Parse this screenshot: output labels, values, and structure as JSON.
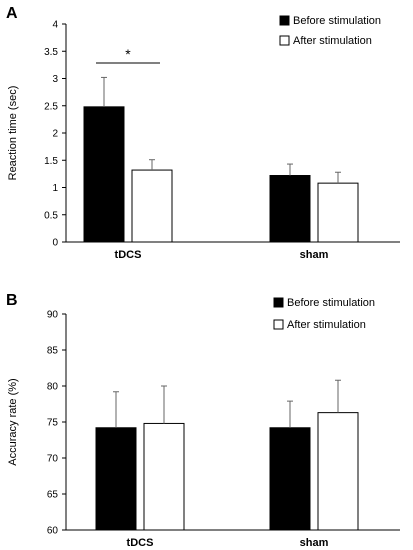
{
  "chart_data": [
    {
      "panel": "A",
      "type": "bar",
      "categories": [
        "tDCS",
        "sham"
      ],
      "ylabel": "Reaction time (sec)",
      "ylim": [
        0,
        4
      ],
      "yticks": [
        "0",
        "0.5",
        "1",
        "1.5",
        "2",
        "2.5",
        "3",
        "3.5",
        "4"
      ],
      "legend_position": "top-right",
      "grid": false,
      "series": [
        {
          "name": "Before stimulation",
          "color": "#000000",
          "values": [
            2.48,
            1.22
          ],
          "errors": [
            0.54,
            0.21
          ]
        },
        {
          "name": "After stimulation",
          "color": "#ffffff",
          "values": [
            1.32,
            1.08
          ],
          "errors": [
            0.19,
            0.2
          ]
        }
      ],
      "annotation": {
        "text": "*",
        "between": "tDCS"
      }
    },
    {
      "panel": "B",
      "type": "bar",
      "categories": [
        "tDCS",
        "sham"
      ],
      "ylabel": "Accuracy rate (%)",
      "ylim": [
        60,
        90
      ],
      "yticks": [
        "60",
        "65",
        "70",
        "75",
        "80",
        "85",
        "90"
      ],
      "legend_position": "top-right",
      "grid": false,
      "series": [
        {
          "name": "Before stimulation",
          "color": "#000000",
          "values": [
            74.2,
            74.2
          ],
          "errors": [
            5.0,
            3.7
          ]
        },
        {
          "name": "After stimulation",
          "color": "#ffffff",
          "values": [
            74.8,
            76.3
          ],
          "errors": [
            5.2,
            4.5
          ]
        }
      ]
    }
  ]
}
